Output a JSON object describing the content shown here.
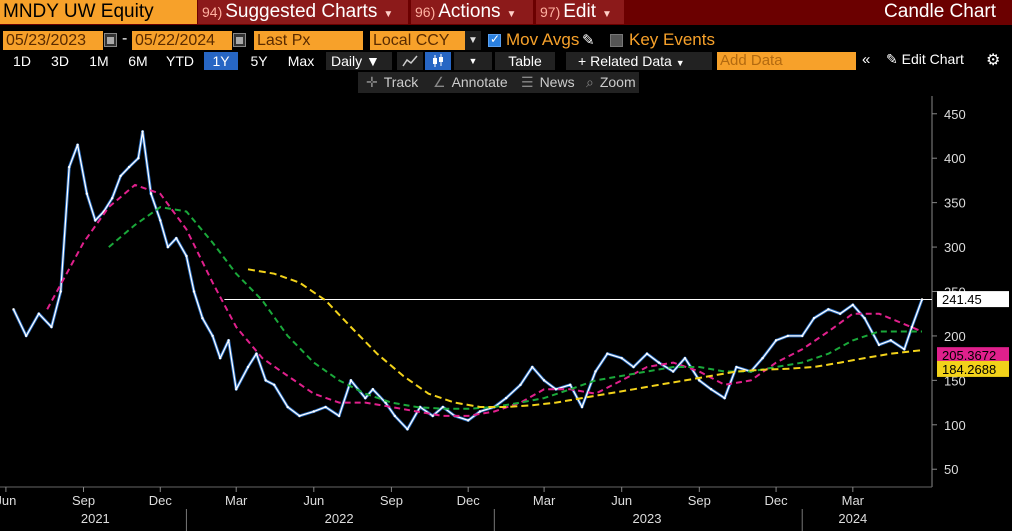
{
  "header": {
    "ticker": "MNDY UW Equity",
    "menus": [
      {
        "num": "94)",
        "label": "Suggested Charts"
      },
      {
        "num": "96)",
        "label": "Actions"
      },
      {
        "num": "97)",
        "label": "Edit"
      }
    ],
    "chart_title": "Candle Chart"
  },
  "controls": {
    "start_date": "05/23/2023",
    "end_date": "05/22/2024",
    "date_separator": "-",
    "field": "Last Px",
    "currency": "Local CCY",
    "mov_avgs": "Mov Avgs",
    "key_events": "Key Events"
  },
  "toolbar": {
    "periods": [
      "1D",
      "3D",
      "1M",
      "6M",
      "YTD",
      "1Y",
      "5Y",
      "Max"
    ],
    "selected_period": "1Y",
    "frequency": "Daily",
    "table": "Table",
    "related_data": "Related Data",
    "add_data_placeholder": "Add Data",
    "edit_chart": "Edit Chart"
  },
  "tools": {
    "track": "Track",
    "annotate": "Annotate",
    "news": "News",
    "zoom": "Zoom"
  },
  "colors": {
    "price": "#ffffff",
    "price_down": "#2f7fe0",
    "ma_short": "#e0208c",
    "ma_mid": "#1aa83a",
    "ma_long": "#f2d21a",
    "ref_line": "#ffffff"
  },
  "chart_data": {
    "type": "line",
    "title": "",
    "ylim": [
      30,
      470
    ],
    "y_ticks": [
      50,
      100,
      150,
      200,
      250,
      300,
      350,
      400,
      450
    ],
    "x_ticks": [
      "Jun",
      "Sep",
      "Dec",
      "Mar",
      "Jun",
      "Sep",
      "Dec",
      "Mar",
      "Jun",
      "Sep",
      "Dec",
      "Mar"
    ],
    "x_year_labels": [
      "2021",
      "2022",
      "2023",
      "2024"
    ],
    "x_domain": [
      "2021-05-25",
      "2024-05-22"
    ],
    "last_price_label": "241.45",
    "reference_line": 241,
    "series": [
      {
        "role": "price",
        "label": "",
        "x": [
          "2021-06-10",
          "2021-06-25",
          "2021-07-10",
          "2021-07-25",
          "2021-08-05",
          "2021-08-15",
          "2021-08-25",
          "2021-09-05",
          "2021-09-15",
          "2021-09-25",
          "2021-10-05",
          "2021-10-15",
          "2021-10-25",
          "2021-11-05",
          "2021-11-10",
          "2021-11-20",
          "2021-12-01",
          "2021-12-10",
          "2021-12-20",
          "2022-01-01",
          "2022-01-10",
          "2022-01-20",
          "2022-02-01",
          "2022-02-10",
          "2022-02-20",
          "2022-03-01",
          "2022-03-15",
          "2022-03-25",
          "2022-04-05",
          "2022-04-15",
          "2022-05-01",
          "2022-05-15",
          "2022-06-01",
          "2022-06-15",
          "2022-07-01",
          "2022-07-15",
          "2022-08-01",
          "2022-08-10",
          "2022-08-25",
          "2022-09-05",
          "2022-09-20",
          "2022-10-05",
          "2022-10-20",
          "2022-11-01",
          "2022-11-15",
          "2022-12-01",
          "2022-12-15",
          "2023-01-01",
          "2023-01-15",
          "2023-02-01",
          "2023-02-15",
          "2023-03-01",
          "2023-03-15",
          "2023-04-01",
          "2023-04-15",
          "2023-05-01",
          "2023-05-15",
          "2023-06-01",
          "2023-06-15",
          "2023-07-01",
          "2023-07-15",
          "2023-08-01",
          "2023-08-15",
          "2023-09-01",
          "2023-09-15",
          "2023-10-01",
          "2023-10-15",
          "2023-11-01",
          "2023-11-15",
          "2023-12-01",
          "2023-12-15",
          "2024-01-01",
          "2024-01-15",
          "2024-02-01",
          "2024-02-15",
          "2024-03-01",
          "2024-03-15",
          "2024-04-01",
          "2024-04-15",
          "2024-05-01",
          "2024-05-10",
          "2024-05-22"
        ],
        "values": [
          230,
          200,
          225,
          210,
          250,
          390,
          415,
          360,
          330,
          340,
          355,
          380,
          390,
          400,
          430,
          360,
          330,
          300,
          310,
          290,
          250,
          220,
          200,
          175,
          195,
          140,
          165,
          180,
          150,
          145,
          120,
          110,
          115,
          120,
          110,
          150,
          130,
          140,
          125,
          110,
          95,
          120,
          110,
          120,
          110,
          105,
          115,
          120,
          130,
          145,
          165,
          150,
          140,
          145,
          120,
          160,
          180,
          175,
          165,
          180,
          170,
          160,
          175,
          150,
          140,
          130,
          165,
          160,
          175,
          195,
          200,
          200,
          220,
          230,
          225,
          235,
          220,
          190,
          195,
          185,
          210,
          241
        ]
      },
      {
        "role": "ma_short",
        "label": "",
        "x": [
          "2021-07-20",
          "2021-09-01",
          "2021-10-01",
          "2021-11-01",
          "2021-12-01",
          "2022-01-01",
          "2022-02-01",
          "2022-03-01",
          "2022-04-01",
          "2022-05-01",
          "2022-06-01",
          "2022-07-01",
          "2022-08-01",
          "2022-09-01",
          "2022-10-01",
          "2022-11-01",
          "2022-12-01",
          "2023-01-01",
          "2023-02-01",
          "2023-03-01",
          "2023-04-01",
          "2023-05-01",
          "2023-06-01",
          "2023-07-01",
          "2023-08-01",
          "2023-09-01",
          "2023-10-01",
          "2023-11-01",
          "2023-12-01",
          "2024-01-01",
          "2024-02-01",
          "2024-03-01",
          "2024-04-01",
          "2024-05-22"
        ],
        "values": [
          230,
          305,
          345,
          370,
          360,
          320,
          260,
          210,
          175,
          155,
          135,
          125,
          125,
          120,
          115,
          110,
          110,
          115,
          125,
          140,
          140,
          135,
          150,
          165,
          170,
          160,
          145,
          150,
          170,
          185,
          205,
          225,
          225,
          205
        ]
      },
      {
        "role": "ma_mid",
        "label": "",
        "x": [
          "2021-10-01",
          "2021-11-01",
          "2021-12-01",
          "2022-01-01",
          "2022-02-01",
          "2022-03-01",
          "2022-04-01",
          "2022-05-01",
          "2022-06-01",
          "2022-07-01",
          "2022-08-01",
          "2022-09-01",
          "2022-10-01",
          "2022-11-01",
          "2022-12-01",
          "2023-01-01",
          "2023-02-01",
          "2023-03-01",
          "2023-04-01",
          "2023-05-01",
          "2023-06-01",
          "2023-07-01",
          "2023-08-01",
          "2023-09-01",
          "2023-10-01",
          "2023-11-01",
          "2023-12-01",
          "2024-01-01",
          "2024-02-01",
          "2024-03-01",
          "2024-04-01",
          "2024-05-22"
        ],
        "values": [
          300,
          325,
          345,
          340,
          305,
          270,
          240,
          200,
          170,
          150,
          135,
          125,
          120,
          118,
          118,
          120,
          125,
          130,
          140,
          150,
          155,
          160,
          165,
          165,
          160,
          160,
          165,
          170,
          180,
          195,
          205,
          205
        ]
      },
      {
        "role": "ma_long",
        "label": "",
        "x": [
          "2022-03-15",
          "2022-04-15",
          "2022-05-15",
          "2022-06-15",
          "2022-07-15",
          "2022-08-15",
          "2022-09-15",
          "2022-10-15",
          "2022-11-15",
          "2022-12-15",
          "2023-01-15",
          "2023-02-15",
          "2023-03-15",
          "2023-04-15",
          "2023-05-15",
          "2023-06-15",
          "2023-07-15",
          "2023-08-15",
          "2023-09-15",
          "2023-10-15",
          "2023-11-15",
          "2023-12-15",
          "2024-01-15",
          "2024-02-15",
          "2024-03-15",
          "2024-04-15",
          "2024-05-22"
        ],
        "values": [
          275,
          270,
          260,
          240,
          210,
          180,
          155,
          135,
          125,
          120,
          120,
          122,
          125,
          130,
          135,
          140,
          145,
          150,
          155,
          160,
          162,
          163,
          165,
          170,
          175,
          180,
          184
        ]
      }
    ],
    "value_labels": [
      "241.45",
      "205.3672",
      "184.2688"
    ]
  }
}
